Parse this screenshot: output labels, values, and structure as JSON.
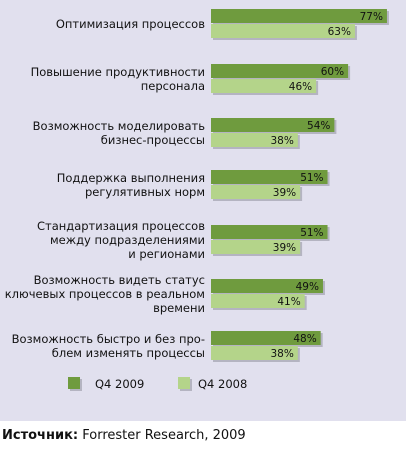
{
  "chart_data": {
    "type": "bar",
    "orientation": "horizontal",
    "categories": [
      [
        "Оптимизация процессов"
      ],
      [
        "Повышение продуктивности",
        "персонала"
      ],
      [
        "Возможность моделировать",
        "бизнес-процессы"
      ],
      [
        "Поддержка выполнения",
        "регулятивных норм"
      ],
      [
        "Стандартизация процессов",
        "между подразделениями",
        "и регионами"
      ],
      [
        "Возможность видеть статус",
        "ключевых процессов в реальном",
        "времени"
      ],
      [
        "Возможность быстро и без про-",
        "блем изменять процессы"
      ]
    ],
    "series": [
      {
        "name": "Q4 2009",
        "color": "#6f9b3e",
        "values": [
          77,
          60,
          54,
          51,
          51,
          49,
          48
        ]
      },
      {
        "name": "Q4 2008",
        "color": "#b4d48a",
        "values": [
          63,
          46,
          38,
          39,
          39,
          41,
          38
        ]
      }
    ],
    "value_suffix": "%",
    "xlim": [
      0,
      77
    ],
    "legend": "bottom"
  },
  "source": {
    "label": "Источник:",
    "text": "Forrester Research, 2009"
  }
}
